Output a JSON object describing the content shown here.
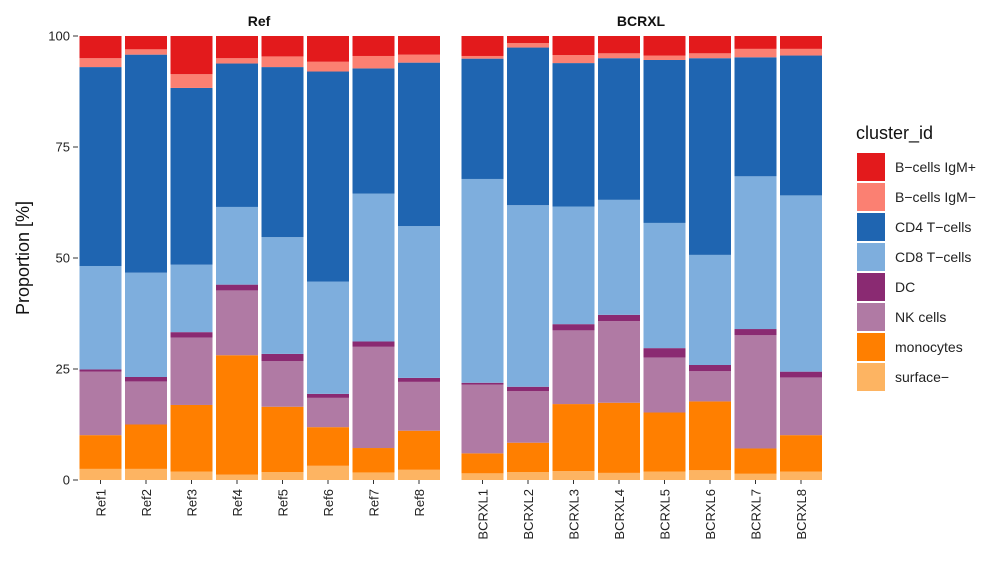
{
  "chart_data": {
    "type": "bar",
    "stacked": true,
    "ylabel": "Proportion [%]",
    "ylim": [
      0,
      100
    ],
    "yticks": [
      0,
      25,
      50,
      75,
      100
    ],
    "grid": false,
    "legend": {
      "title": "cluster_id",
      "position": "right"
    },
    "clusters": [
      "B−cells IgM+",
      "B−cells IgM−",
      "CD4 T−cells",
      "CD8 T−cells",
      "DC",
      "NK cells",
      "monocytes",
      "surface−"
    ],
    "colors": [
      "#e31a1c",
      "#fb8072",
      "#1f65b1",
      "#7eaedd",
      "#8a2a72",
      "#b07aa4",
      "#ff7f00",
      "#fdb462"
    ],
    "panels": [
      {
        "title": "Ref",
        "samples": [
          {
            "name": "Ref1",
            "values": [
              5.0,
              2.0,
              44.8,
              23.3,
              0.5,
              14.3,
              7.6,
              2.5
            ]
          },
          {
            "name": "Ref2",
            "values": [
              3.0,
              1.2,
              49.1,
              23.5,
              1.0,
              9.7,
              10.0,
              2.5
            ]
          },
          {
            "name": "Ref3",
            "values": [
              8.6,
              3.1,
              39.8,
              15.2,
              1.2,
              15.2,
              15.0,
              1.9
            ]
          },
          {
            "name": "Ref4",
            "values": [
              5.0,
              1.2,
              32.3,
              17.5,
              1.3,
              14.6,
              26.9,
              1.2
            ]
          },
          {
            "name": "Ref5",
            "values": [
              4.6,
              2.4,
              38.3,
              26.3,
              1.6,
              10.3,
              14.7,
              1.8
            ]
          },
          {
            "name": "Ref6",
            "values": [
              5.8,
              2.2,
              47.3,
              25.3,
              0.9,
              6.6,
              8.7,
              3.2
            ]
          },
          {
            "name": "Ref7",
            "values": [
              4.5,
              2.8,
              28.2,
              33.3,
              1.2,
              22.8,
              5.5,
              1.7
            ]
          },
          {
            "name": "Ref8",
            "values": [
              4.2,
              1.8,
              36.8,
              34.2,
              0.9,
              11.0,
              8.8,
              2.3
            ]
          }
        ]
      },
      {
        "title": "BCRXL",
        "samples": [
          {
            "name": "BCRXL1",
            "values": [
              4.5,
              0.6,
              27.1,
              45.9,
              0.4,
              15.5,
              4.5,
              1.5
            ]
          },
          {
            "name": "BCRXL2",
            "values": [
              1.6,
              1.0,
              35.5,
              40.9,
              1.0,
              11.6,
              6.6,
              1.8
            ]
          },
          {
            "name": "BCRXL3",
            "values": [
              4.3,
              1.8,
              32.3,
              26.5,
              1.4,
              16.6,
              15.1,
              2.0
            ]
          },
          {
            "name": "BCRXL4",
            "values": [
              3.9,
              1.1,
              31.9,
              25.9,
              1.4,
              18.4,
              15.8,
              1.6
            ]
          },
          {
            "name": "BCRXL5",
            "values": [
              4.4,
              1.0,
              36.7,
              28.2,
              2.1,
              12.4,
              13.3,
              1.9
            ]
          },
          {
            "name": "BCRXL6",
            "values": [
              3.9,
              1.1,
              44.3,
              24.8,
              1.4,
              6.8,
              15.5,
              2.2
            ]
          },
          {
            "name": "BCRXL7",
            "values": [
              2.9,
              1.9,
              26.8,
              34.4,
              1.4,
              25.5,
              5.7,
              1.4
            ]
          },
          {
            "name": "BCRXL8",
            "values": [
              2.9,
              1.5,
              31.5,
              39.7,
              1.3,
              13.0,
              8.2,
              1.9
            ]
          }
        ]
      }
    ]
  }
}
